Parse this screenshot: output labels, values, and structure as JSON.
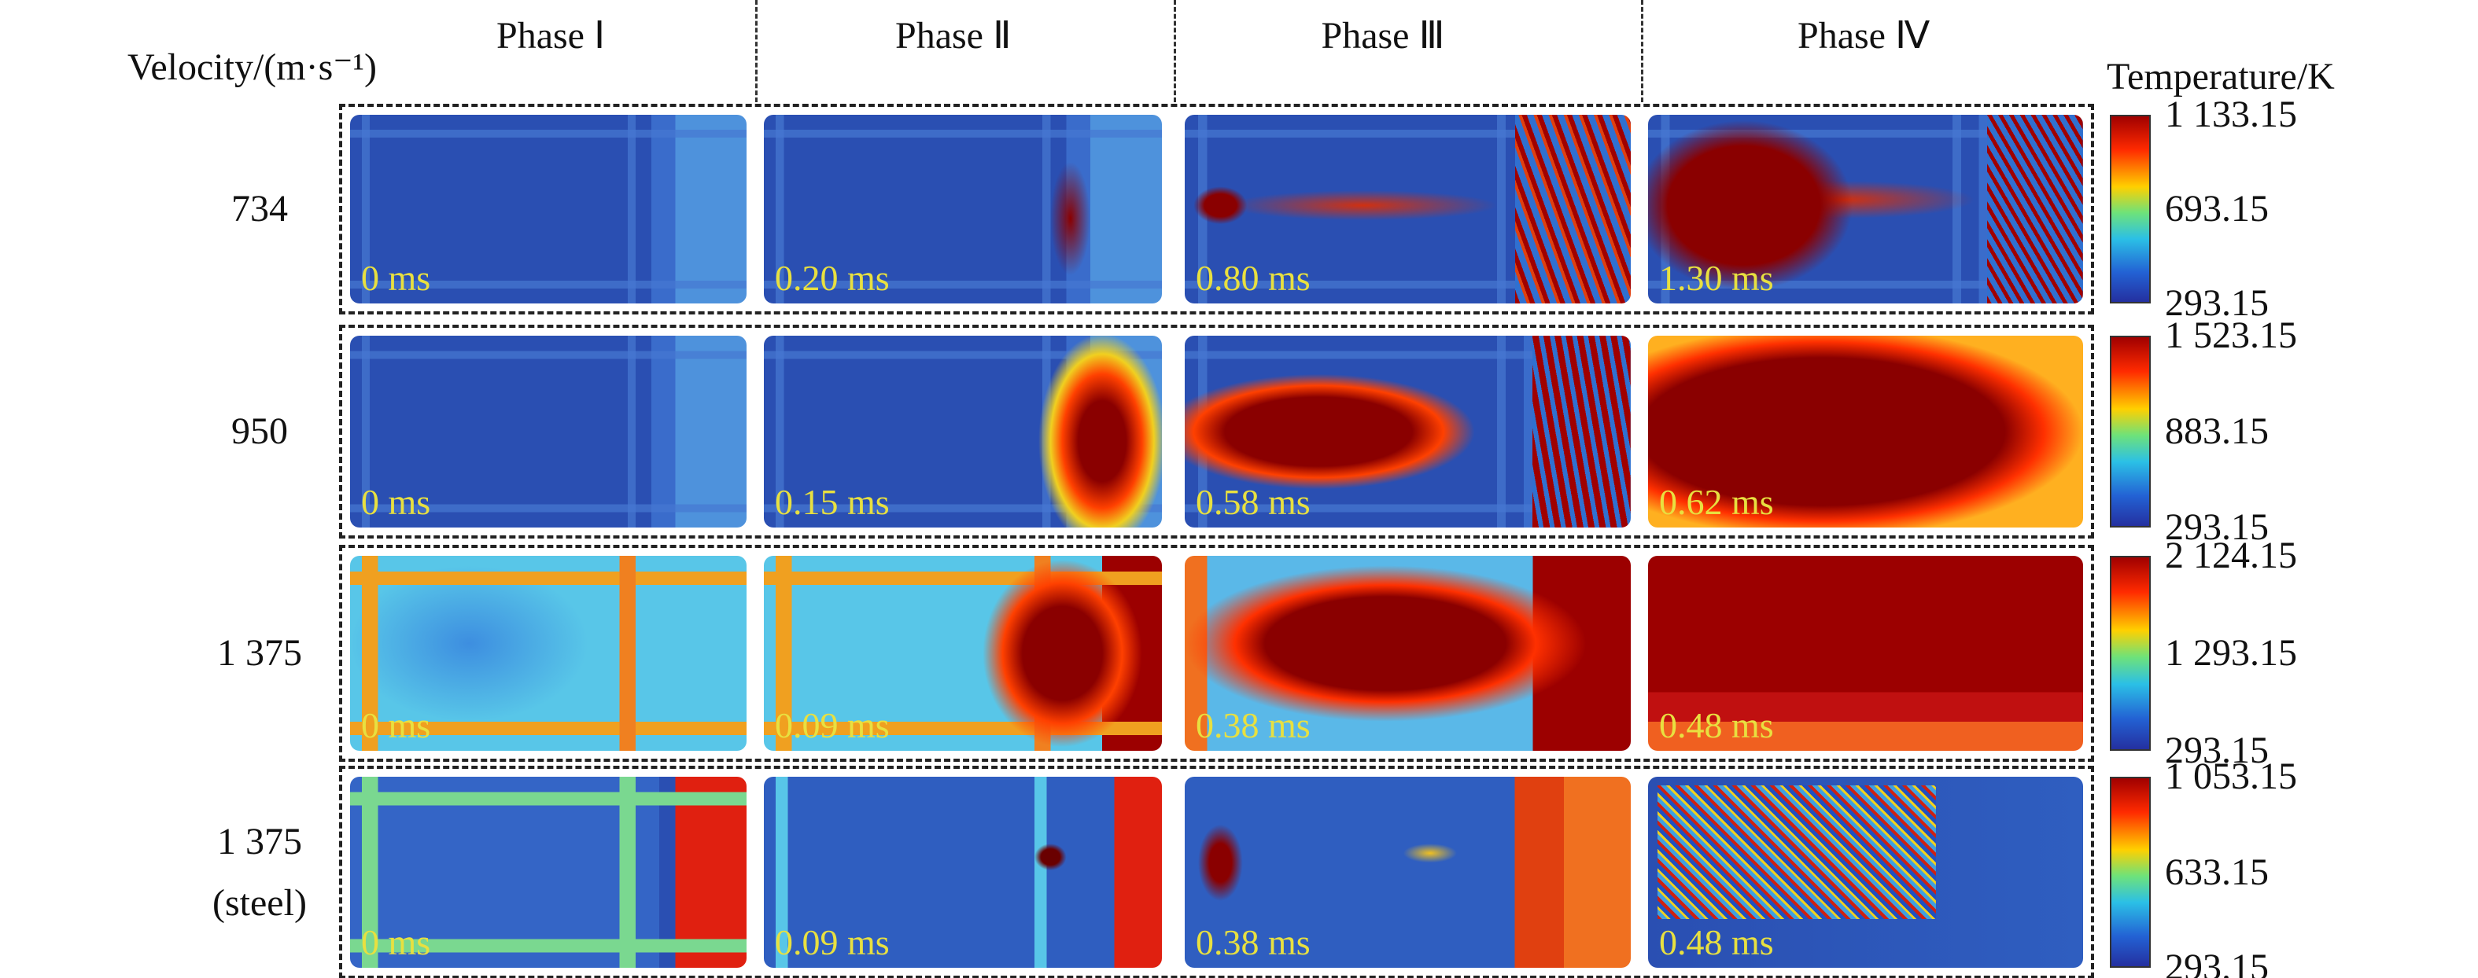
{
  "header": {
    "velocity_label": "Velocity/(m·s⁻¹)",
    "phases": [
      "Phase Ⅰ",
      "Phase Ⅱ",
      "Phase Ⅲ",
      "Phase Ⅳ"
    ],
    "colorbar_title": "Temperature/K"
  },
  "rows": [
    {
      "label": [
        "734"
      ],
      "times": [
        "0 ms",
        "0.20 ms",
        "0.80 ms",
        "1.30 ms"
      ],
      "colorbar": [
        "1 133.15",
        "693.15",
        "293.15"
      ]
    },
    {
      "label": [
        "950"
      ],
      "times": [
        "0 ms",
        "0.15 ms",
        "0.58 ms",
        "0.62 ms"
      ],
      "colorbar": [
        "1 523.15",
        "883.15",
        "293.15"
      ]
    },
    {
      "label": [
        "1 375"
      ],
      "times": [
        "0 ms",
        "0.09 ms",
        "0.38 ms",
        "0.48 ms"
      ],
      "colorbar": [
        "2 124.15",
        "1 293.15",
        "293.15"
      ]
    },
    {
      "label": [
        "1 375",
        "(steel)"
      ],
      "times": [
        "0 ms",
        "0.09 ms",
        "0.38 ms",
        "0.48 ms"
      ],
      "colorbar": [
        "1 053.15",
        "633.15",
        "293.15"
      ]
    }
  ]
}
